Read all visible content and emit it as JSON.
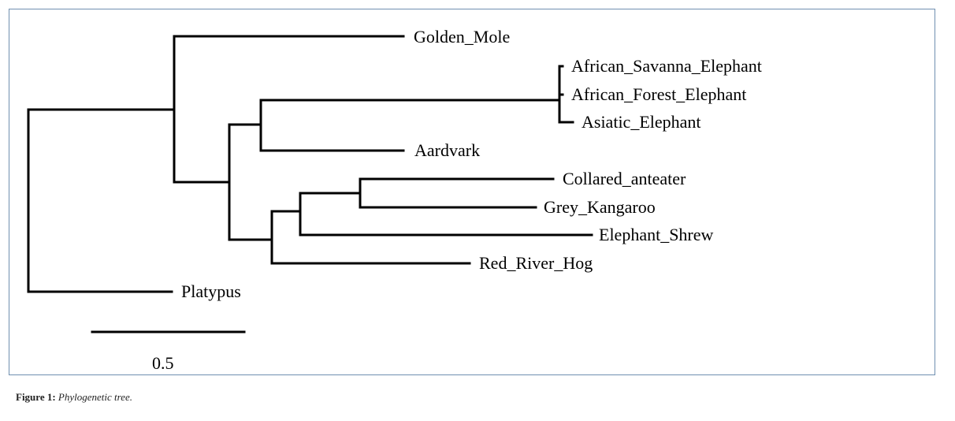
{
  "tree": {
    "taxa": {
      "golden_mole": "Golden_Mole",
      "african_savanna_elephant": "African_Savanna_Elephant",
      "african_forest_elephant": "African_Forest_Elephant",
      "asiatic_elephant": "Asiatic_Elephant",
      "aardvark": "Aardvark",
      "collared_anteater": "Collared_anteater",
      "grey_kangaroo": "Grey_Kangaroo",
      "elephant_shrew": "Elephant_Shrew",
      "red_river_hog": "Red_River_Hog",
      "platypus": "Platypus"
    },
    "scale_bar": {
      "value": 0.5,
      "label": "0.5"
    }
  },
  "caption": {
    "label": "Figure 1:",
    "text": "Phylogenetic tree."
  },
  "colors": {
    "frame_border": "#6f8fb0",
    "branches": "#000000"
  }
}
